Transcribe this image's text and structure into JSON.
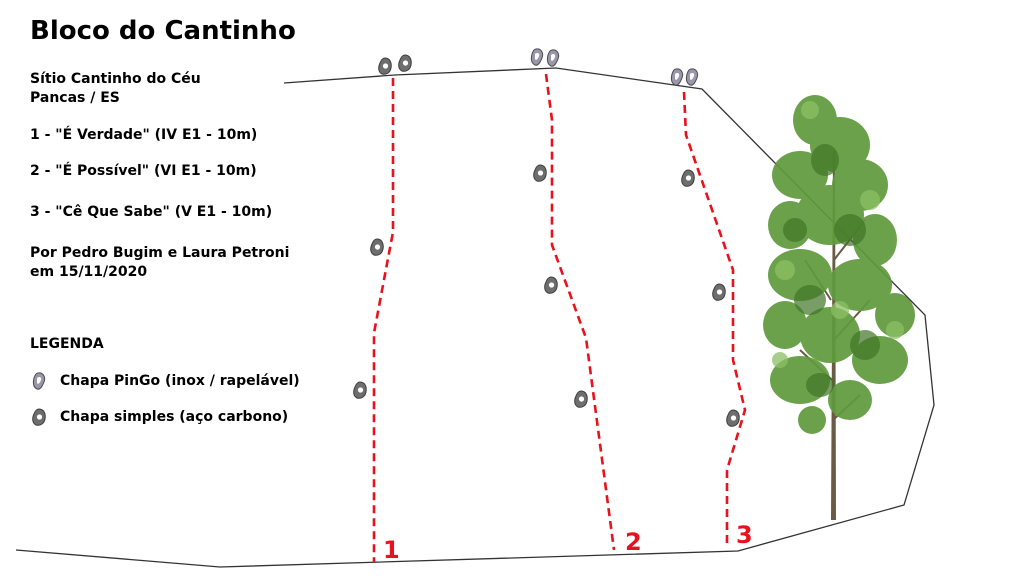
{
  "title": "Bloco do Cantinho",
  "location": {
    "line1": "Sítio Cantinho do Céu",
    "line2": "Pancas / ES"
  },
  "routes": [
    {
      "num": "1",
      "label": "1 - \"É Verdade\" (IV E1 - 10m)"
    },
    {
      "num": "2",
      "label": "2 - \"É Possível\" (VI E1 - 10m)"
    },
    {
      "num": "3",
      "label": "3 - \"Cê Que Sabe\" (V E1 - 10m)"
    }
  ],
  "credits": {
    "line1": "Por Pedro Bugim e Laura Petroni",
    "line2": "em 15/11/2020"
  },
  "legend": {
    "title": "LEGENDA",
    "pingo": "Chapa PinGo (inox / rapelável)",
    "simples": "Chapa simples (aço carbono)"
  },
  "colors": {
    "route_line": "#e8111c",
    "outline": "#333333",
    "bolt_simple": "#6a6a6a",
    "bolt_pingo": "#8a8898"
  },
  "icons": {
    "bolt_simple": "hanger-simple-icon",
    "bolt_pingo": "hanger-pingo-icon",
    "tree": "tree-illustration"
  }
}
